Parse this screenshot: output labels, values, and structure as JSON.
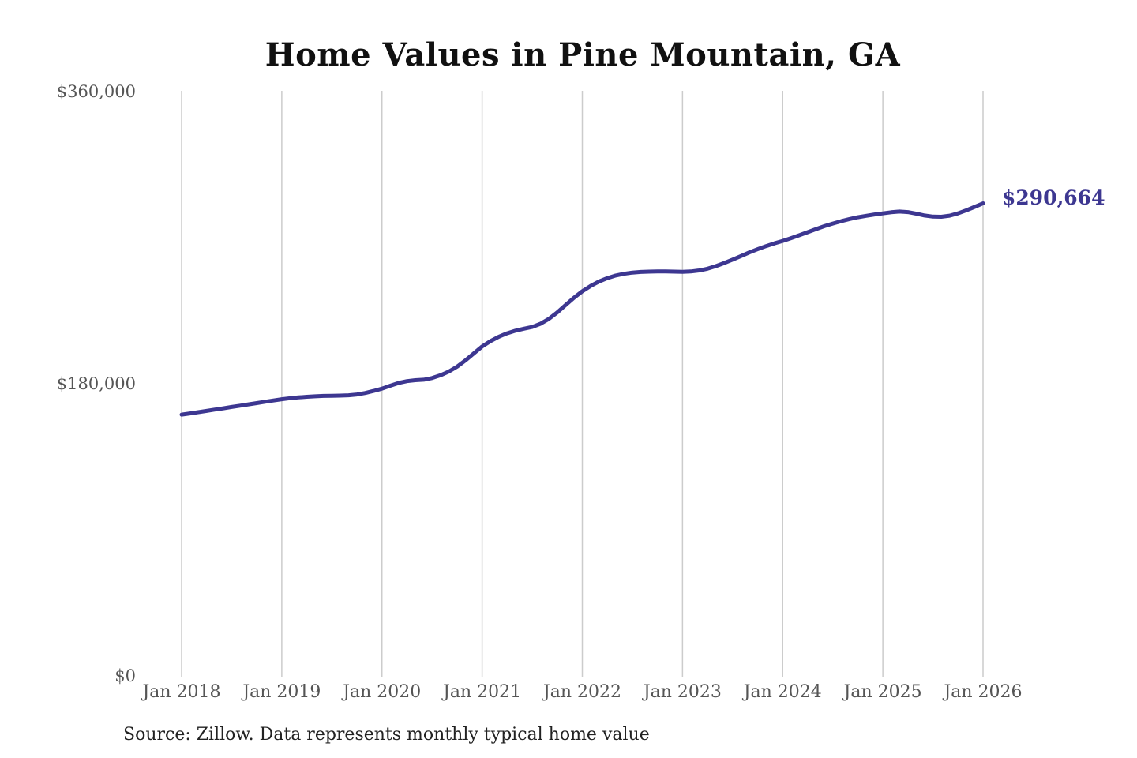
{
  "chart_data": {
    "type": "line",
    "title": "Home Values in Pine Mountain, GA",
    "source": "Source: Zillow. Data represents monthly typical home value",
    "annotation": {
      "label": "$290,664",
      "value": 290664
    },
    "x_tick_labels": [
      "Jan 2018",
      "Jan 2019",
      "Jan 2020",
      "Jan 2021",
      "Jan 2022",
      "Jan 2023",
      "Jan 2024",
      "Jan 2025",
      "Jan 2026"
    ],
    "y_ticks": [
      {
        "value": 0,
        "label": "$0"
      },
      {
        "value": 180000,
        "label": "$180,000"
      },
      {
        "value": 360000,
        "label": "$360,000"
      }
    ],
    "ylim": [
      0,
      360000
    ],
    "x_start": "Jan 2018",
    "x_end": "Jan 2026",
    "x_interval": "monthly",
    "grid": "vertical-only",
    "legend": "none",
    "colors": {
      "line": "#3d3791",
      "annotation": "#3d3791",
      "grid": "#cccccc",
      "tick_label": "#555555",
      "title": "#111111",
      "source": "#222222",
      "background": "#ffffff"
    },
    "series": [
      {
        "name": "Monthly typical home value",
        "values": [
          160500,
          161200,
          162000,
          162800,
          163600,
          164400,
          165200,
          166000,
          166800,
          167600,
          168400,
          169200,
          170000,
          170600,
          171100,
          171500,
          171800,
          172000,
          172100,
          172200,
          172400,
          172900,
          173800,
          175100,
          176500,
          178300,
          180000,
          181100,
          181700,
          182000,
          183000,
          184700,
          187000,
          190000,
          193900,
          198200,
          202500,
          205800,
          208500,
          210600,
          212200,
          213400,
          214500,
          216500,
          219500,
          223500,
          228000,
          232500,
          236500,
          239800,
          242500,
          244600,
          246200,
          247300,
          248000,
          248400,
          248600,
          248700,
          248700,
          248600,
          248500,
          248700,
          249300,
          250400,
          252000,
          253900,
          256000,
          258200,
          260400,
          262400,
          264300,
          266000,
          267500,
          269200,
          271000,
          272900,
          274800,
          276600,
          278200,
          279700,
          281000,
          282100,
          283000,
          283800,
          284500,
          285200,
          285600,
          285300,
          284300,
          283200,
          282500,
          282400,
          283100,
          284500,
          286400,
          288500,
          290664
        ]
      }
    ]
  }
}
